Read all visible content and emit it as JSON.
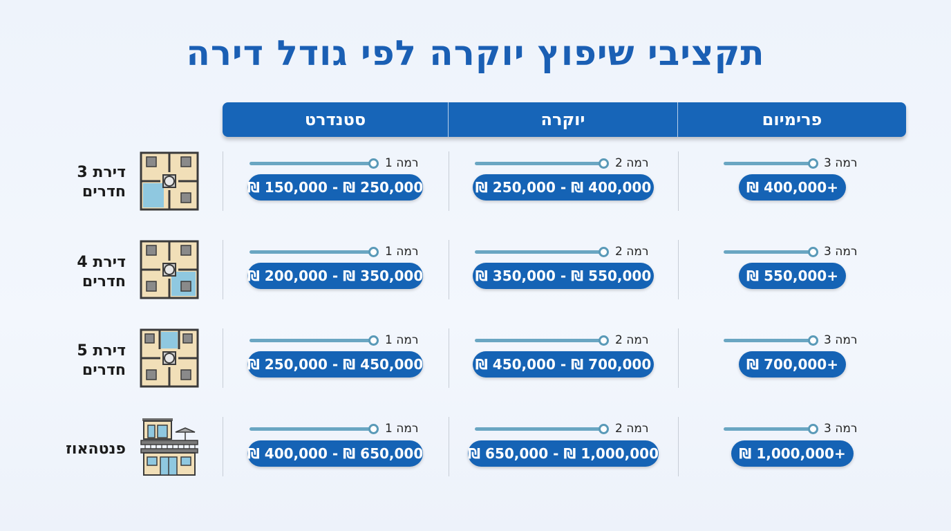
{
  "title": "תקציבי שיפוץ יוקרה לפי גודל דירה",
  "columns": [
    "סטנדרט",
    "יוקרה",
    "פרימיום"
  ],
  "rows": [
    {
      "label_line1": "דירת 3",
      "label_line2": "חדרים",
      "icon": "floorplan-icon",
      "cells": [
        {
          "level": "רמה 1",
          "range": "₪ 150,000 - ₪ 250,000"
        },
        {
          "level": "רמה 2",
          "range": "₪ 250,000 - ₪ 400,000"
        },
        {
          "level": "רמה 3",
          "range": "₪ 400,000+"
        }
      ]
    },
    {
      "label_line1": "דירת 4",
      "label_line2": "חדרים",
      "icon": "floorplan-icon",
      "cells": [
        {
          "level": "רמה 1",
          "range": "₪ 200,000 - ₪ 350,000"
        },
        {
          "level": "רמה 2",
          "range": "₪ 350,000 - ₪ 550,000"
        },
        {
          "level": "רמה 3",
          "range": "₪ 550,000+"
        }
      ]
    },
    {
      "label_line1": "דירת 5",
      "label_line2": "חדרים",
      "icon": "floorplan-icon",
      "cells": [
        {
          "level": "רמה 1",
          "range": "₪ 250,000 - ₪ 450,000"
        },
        {
          "level": "רמה 2",
          "range": "₪ 450,000 - ₪ 700,000"
        },
        {
          "level": "רמה 3",
          "range": "₪ 700,000+"
        }
      ]
    },
    {
      "label_line1": "פנטהאוז",
      "label_line2": "",
      "icon": "penthouse-building-icon",
      "cells": [
        {
          "level": "רמה 1",
          "range": "₪ 400,000 - ₪ 650,000"
        },
        {
          "level": "רמה 2",
          "range": "₪ 650,000 - ₪ 1,000,000"
        },
        {
          "level": "רמה 3",
          "range": "₪ 1,000,000+"
        }
      ]
    }
  ],
  "colors": {
    "title": "#1a5fb4",
    "header": "#1765b8",
    "pill": "#1563b5",
    "level_line": "#6aa6c2"
  }
}
